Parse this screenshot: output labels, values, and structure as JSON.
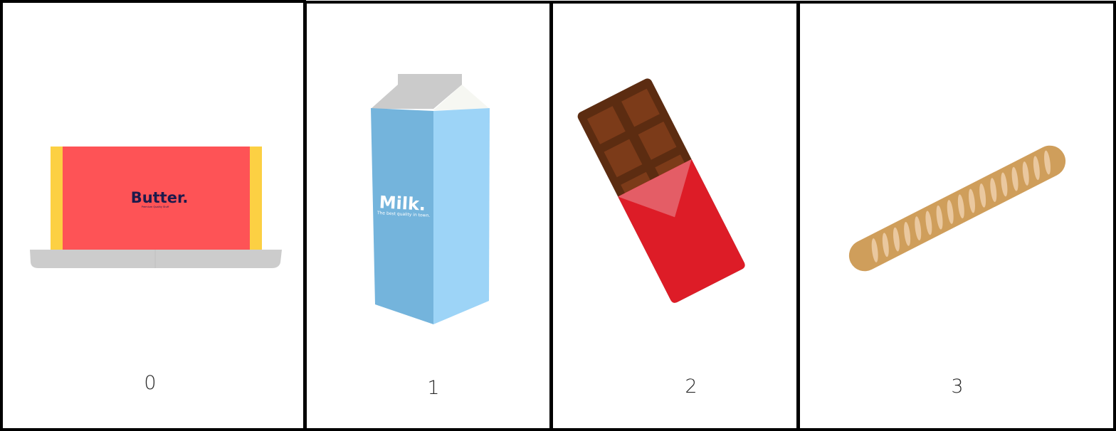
{
  "cards": [
    {
      "number": "0",
      "item": "butter",
      "brand": "Butter.",
      "tagline": "Premium Quality Stuff"
    },
    {
      "number": "1",
      "item": "milk",
      "brand": "Milk.",
      "tagline": "The best quality in town."
    },
    {
      "number": "2",
      "item": "chocolate-bar"
    },
    {
      "number": "3",
      "item": "baguette"
    }
  ],
  "colors": {
    "border": "#000000",
    "butter_wrapper": "#fe5356",
    "butter_ends": "#fcd043",
    "butter_text": "#1d1a4c",
    "dish": "#cccccc",
    "milk_front": "#74b4dc",
    "milk_side": "#9dd4f7",
    "milk_top": "#cbcbcb",
    "chocolate_dark": "#5c2c11",
    "chocolate_square": "#7c3b19",
    "wrapper_red": "#dd1c27",
    "wrapper_pink": "#e45d66",
    "bread": "#cf9e5b",
    "bread_slash": "#eac89f"
  }
}
